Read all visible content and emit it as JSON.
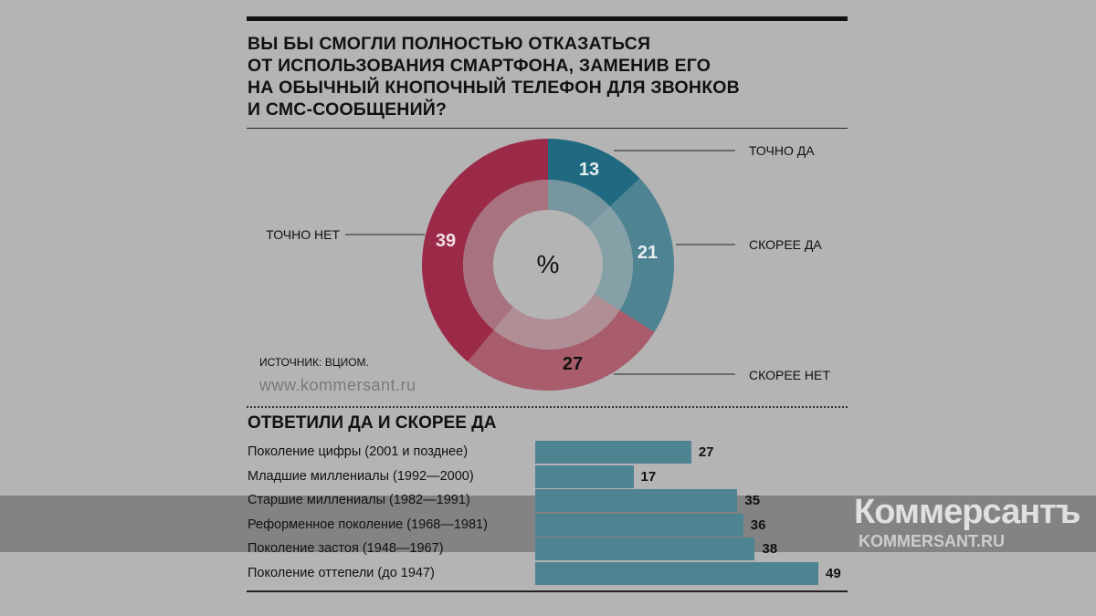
{
  "title": [
    "ВЫ БЫ СМОГЛИ ПОЛНОСТЬЮ ОТКАЗАТЬСЯ",
    "ОТ ИСПОЛЬЗОВАНИЯ СМАРТФОНА, ЗАМЕНИВ ЕГО",
    "НА ОБЫЧНЫЙ КНОПОЧНЫЙ ТЕЛЕФОН ДЛЯ ЗВОНКОВ",
    "И СМС-СООБЩЕНИЙ?"
  ],
  "source": "ИСТОЧНИК: ВЦИОМ.",
  "site": "www.kommersant.ru",
  "watermark": {
    "logo": "Коммерсантъ",
    "url": "KOMMERSANT.RU"
  },
  "chart_data": [
    {
      "type": "pie",
      "center_label": "%",
      "categories": [
        "ТОЧНО ДА",
        "СКОРЕЕ ДА",
        "СКОРЕЕ НЕТ",
        "ТОЧНО НЕТ"
      ],
      "values": [
        13,
        21,
        27,
        39
      ],
      "colors": [
        "#1f6a80",
        "#4e8392",
        "#a85c6c",
        "#9a2a48"
      ],
      "inner_colors": [
        "#7896a0",
        "#86a0a8",
        "#b08e96",
        "#a8727e"
      ]
    },
    {
      "type": "bar",
      "title": "ОТВЕТИЛИ ДА И СКОРЕЕ ДА",
      "categories": [
        "Поколение цифры (2001 и позднее)",
        "Младшие миллениалы (1992—2000)",
        "Старшие миллениалы (1982—1991)",
        "Реформенное поколение (1968—1981)",
        "Поколение застоя (1948—1967)",
        "Поколение оттепели (до 1947)"
      ],
      "values": [
        27,
        17,
        35,
        36,
        38,
        49
      ],
      "color": "#4e8392"
    }
  ]
}
